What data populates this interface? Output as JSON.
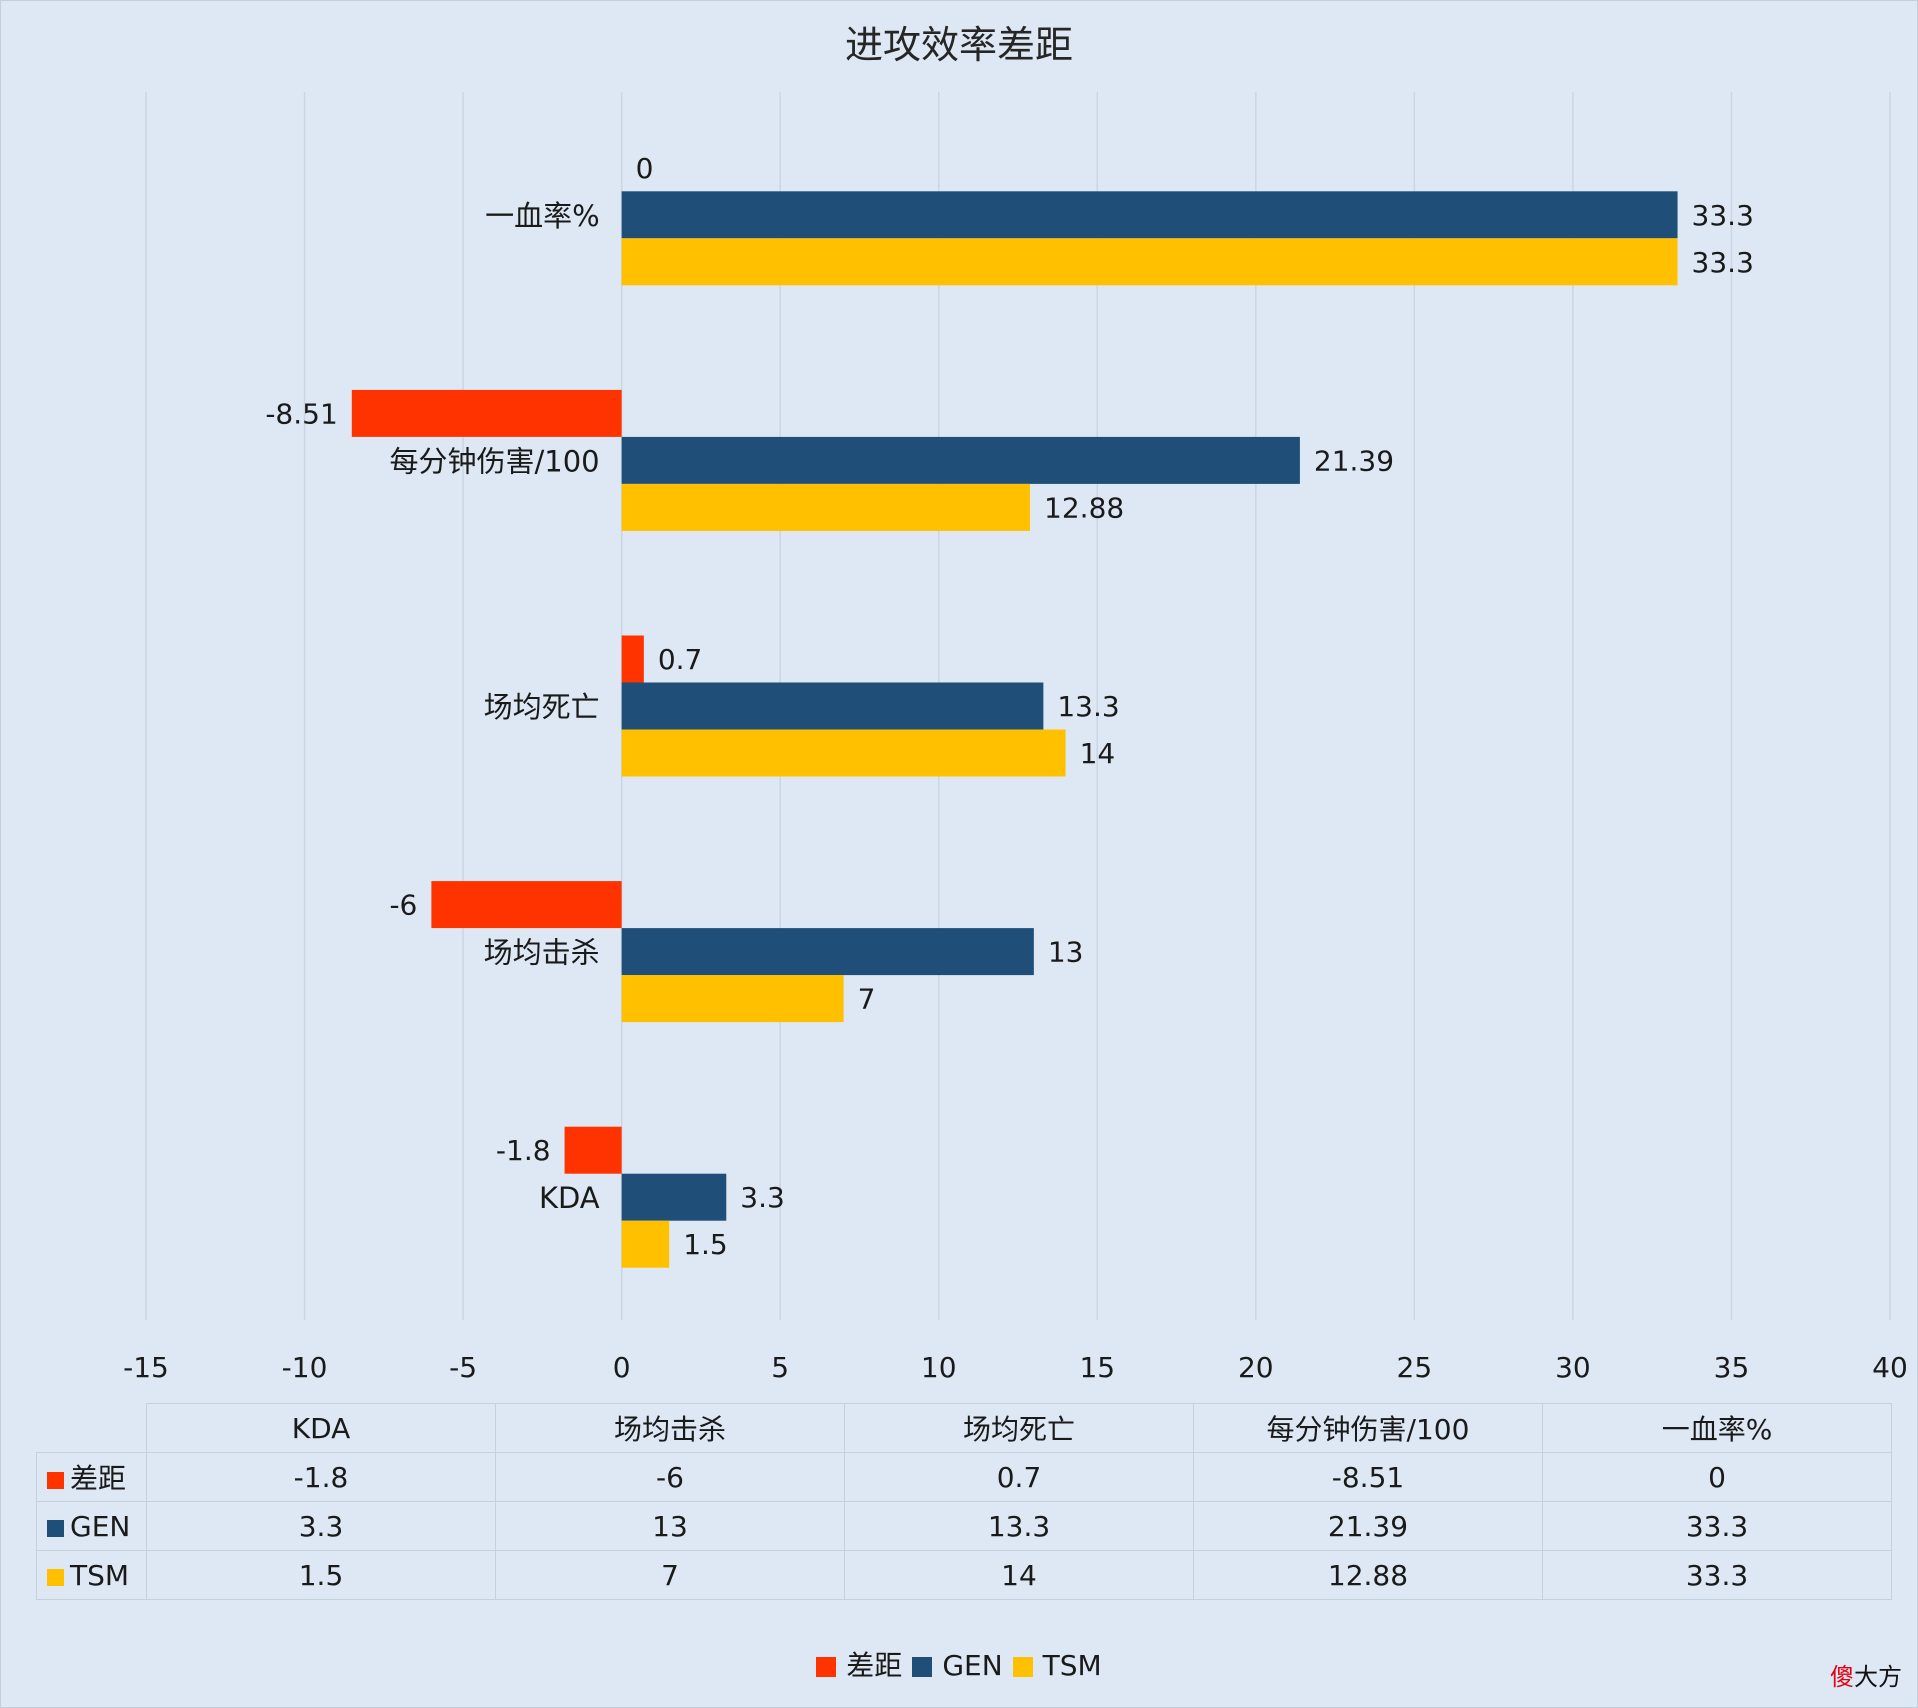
{
  "chart_data": {
    "type": "bar",
    "orientation": "horizontal",
    "title": "进攻效率差距",
    "categories": [
      "KDA",
      "场均击杀",
      "场均死亡",
      "每分钟伤害/100",
      "一血率%"
    ],
    "series": [
      {
        "name": "差距",
        "color": "#ff3300",
        "values": [
          -1.8,
          -6,
          0.7,
          -8.51,
          0
        ]
      },
      {
        "name": "GEN",
        "color": "#1f4e79",
        "values": [
          3.3,
          13,
          13.3,
          21.39,
          33.3
        ]
      },
      {
        "name": "TSM",
        "color": "#ffc000",
        "values": [
          1.5,
          7,
          14,
          12.88,
          33.3
        ]
      }
    ],
    "xlim": [
      -15,
      40
    ],
    "xticks": [
      -15,
      -10,
      -5,
      0,
      5,
      10,
      15,
      20,
      25,
      30,
      35,
      40
    ],
    "grid": true,
    "data_table": true,
    "legend_position": "bottom"
  },
  "watermark": {
    "accent": "傻",
    "rest": "大方"
  }
}
